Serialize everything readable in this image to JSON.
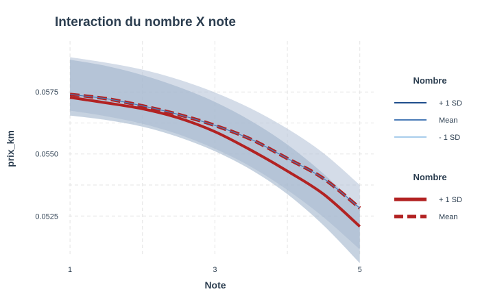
{
  "chart_data": {
    "type": "line",
    "title": "Interaction  du nombre X note",
    "xlabel": "Note",
    "ylabel": "prix_km",
    "xlim": [
      0.98,
      5.05
    ],
    "ylim": [
      0.05085,
      0.05955
    ],
    "x_ticks": [
      1,
      3,
      5
    ],
    "x_tick_labels": [
      "1",
      "3",
      "5"
    ],
    "y_ticks": [
      0.0525,
      0.055,
      0.0575
    ],
    "y_tick_labels": [
      "0.0525",
      "0.0550",
      "0.0575"
    ],
    "grid": true,
    "x": [
      1,
      1.5,
      2,
      2.5,
      3,
      3.5,
      4,
      4.5,
      5
    ],
    "bands": [
      {
        "fill": "#b7c5d9",
        "opacity": 0.6,
        "lower": [
          0.05675,
          0.05652,
          0.05622,
          0.05579,
          0.05521,
          0.05448,
          0.05355,
          0.05245,
          0.05115
        ],
        "upper": [
          0.0589,
          0.05868,
          0.0584,
          0.058,
          0.05748,
          0.05683,
          0.05602,
          0.05503,
          0.05375
        ]
      },
      {
        "fill": "#a0b4cc",
        "opacity": 0.6,
        "lower": [
          0.05655,
          0.05637,
          0.0561,
          0.05568,
          0.05511,
          0.05436,
          0.05338,
          0.05212,
          0.0506
        ],
        "upper": [
          0.0588,
          0.05855,
          0.05818,
          0.0577,
          0.0571,
          0.05633,
          0.05538,
          0.0542,
          0.0528
        ]
      }
    ],
    "series": [
      {
        "name": "+ 1 SD",
        "color": "#b22222",
        "width": 4,
        "dash": "none",
        "values": [
          0.05728,
          0.05706,
          0.05682,
          0.05645,
          0.0559,
          0.05515,
          0.05431,
          0.05338,
          0.05208
        ]
      },
      {
        "name": "Mean",
        "color": "#b22222",
        "width": 5,
        "dash": "14 6",
        "values": [
          0.0574,
          0.05723,
          0.05694,
          0.05659,
          0.05615,
          0.05559,
          0.05482,
          0.05401,
          0.05282
        ]
      },
      {
        "name": "Mean",
        "color": "#4a7bb7",
        "width": 1.2,
        "dash": "none",
        "values": [
          0.0574,
          0.05723,
          0.05694,
          0.05659,
          0.05615,
          0.05559,
          0.05482,
          0.05401,
          0.05282
        ]
      }
    ],
    "legends": [
      {
        "title": "Nombre",
        "placement": "right-top",
        "entries": [
          {
            "label": "+ 1 SD",
            "color": "#1f4e8c",
            "width": 2,
            "dash": "none"
          },
          {
            "label": "Mean",
            "color": "#4a7bb7",
            "width": 2,
            "dash": "none"
          },
          {
            "label": "- 1 SD",
            "color": "#a8cdeb",
            "width": 2,
            "dash": "none"
          }
        ]
      },
      {
        "title": "Nombre",
        "placement": "right-bottom",
        "entries": [
          {
            "label": "+ 1 SD",
            "color": "#b22222",
            "width": 5,
            "dash": "none"
          },
          {
            "label": "Mean",
            "color": "#b22222",
            "width": 5,
            "dash": "13 6"
          }
        ]
      }
    ]
  }
}
